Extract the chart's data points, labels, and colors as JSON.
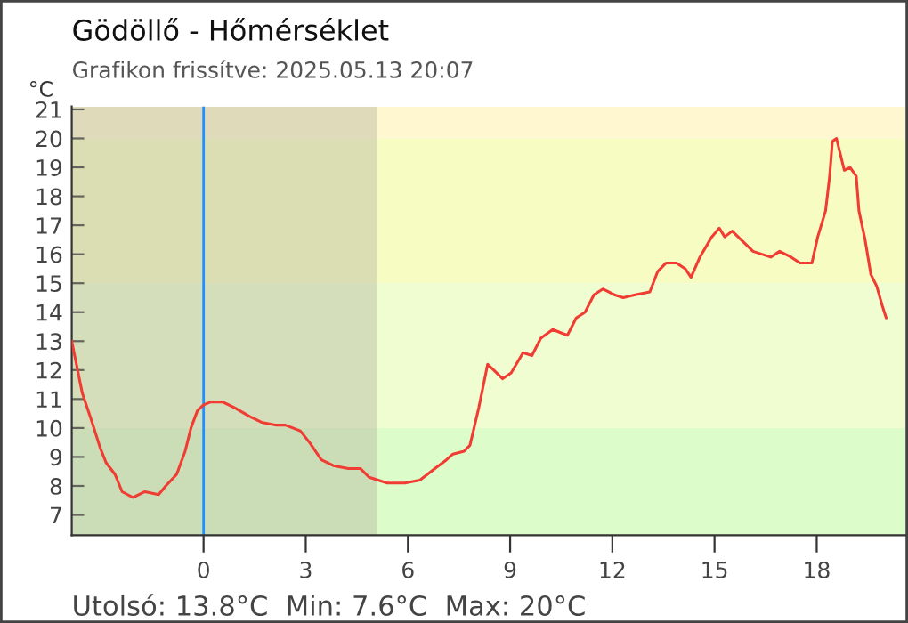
{
  "chart_data": {
    "type": "line",
    "title": "Gödöllő - Hőmérséklet",
    "subtitle": "Grafikon frissítve: 2025.05.13 20:07",
    "ylabel": "°C",
    "annotations": [
      "Utolsó: 13.8°C  Min: 7.6°C  Max: 20°C"
    ],
    "series": [
      {
        "color": "#f03c32",
        "x": [
          -3.87,
          -3.56,
          -3.3,
          -3.03,
          -2.86,
          -2.6,
          -2.39,
          -2.07,
          -1.72,
          -1.32,
          -1.11,
          -0.79,
          -0.54,
          -0.37,
          -0.18,
          0,
          0.21,
          0.56,
          0.91,
          1.35,
          1.7,
          2.14,
          2.4,
          2.84,
          3.11,
          3.46,
          3.81,
          4.25,
          4.6,
          4.86,
          5.39,
          5.91,
          6.35,
          6.79,
          7.13,
          7.32,
          7.65,
          7.82,
          8.08,
          8.34,
          8.52,
          8.78,
          9.03,
          9.38,
          9.64,
          9.9,
          10.25,
          10.68,
          10.94,
          11.2,
          11.46,
          11.72,
          12.06,
          12.32,
          12.67,
          13.1,
          13.33,
          13.58,
          13.88,
          14.14,
          14.31,
          14.57,
          14.92,
          15.14,
          15.3,
          15.52,
          15.78,
          16.13,
          16.65,
          16.91,
          17.25,
          17.51,
          17.86,
          18.03,
          18.26,
          18.38,
          18.46,
          18.58,
          18.81,
          18.98,
          19.16,
          19.24,
          19.42,
          19.59,
          19.76,
          19.93,
          20.04
        ],
        "values": [
          13.0,
          11.2,
          10.3,
          9.3,
          8.8,
          8.4,
          7.8,
          7.6,
          7.8,
          7.7,
          8.0,
          8.4,
          9.2,
          10.0,
          10.6,
          10.8,
          10.9,
          10.9,
          10.7,
          10.4,
          10.2,
          10.1,
          10.1,
          9.9,
          9.5,
          8.9,
          8.7,
          8.6,
          8.6,
          8.3,
          8.1,
          8.1,
          8.2,
          8.6,
          8.9,
          9.1,
          9.2,
          9.4,
          10.7,
          12.2,
          12.0,
          11.7,
          11.9,
          12.6,
          12.5,
          13.1,
          13.4,
          13.2,
          13.8,
          14.0,
          14.6,
          14.8,
          14.6,
          14.5,
          14.6,
          14.7,
          15.4,
          15.7,
          15.7,
          15.5,
          15.2,
          15.9,
          16.6,
          16.9,
          16.6,
          16.8,
          16.5,
          16.1,
          15.9,
          16.1,
          15.9,
          15.7,
          15.7,
          16.6,
          17.5,
          18.7,
          19.9,
          20.0,
          18.9,
          19.0,
          18.7,
          17.5,
          16.5,
          15.3,
          14.9,
          14.2,
          13.8
        ]
      }
    ],
    "xlim": [
      -3.87,
      20.6
    ],
    "ylim": [
      6.3,
      21.1
    ],
    "xticks": [
      0,
      3,
      6,
      9,
      12,
      15,
      18
    ],
    "yticks": [
      7,
      8,
      9,
      10,
      11,
      12,
      13,
      14,
      15,
      16,
      17,
      18,
      19,
      20,
      21
    ],
    "bands": [
      {
        "axis": "y",
        "from": 6.3,
        "to": 10,
        "color": "#dcfcca"
      },
      {
        "axis": "y",
        "from": 10,
        "to": 15,
        "color": "#effdd0"
      },
      {
        "axis": "y",
        "from": 15,
        "to": 20,
        "color": "#f7fdc2"
      },
      {
        "axis": "y",
        "from": 20,
        "to": 21.1,
        "color": "#fef7cf"
      },
      {
        "axis": "x",
        "from": -3.87,
        "to": 5.1,
        "color": "#b0b09c"
      }
    ],
    "ref_lines": [
      {
        "axis": "x",
        "value": 0,
        "color": "#1e90ff"
      }
    ],
    "grid": false,
    "legend": false,
    "marker": "none",
    "line_style": "solid"
  }
}
